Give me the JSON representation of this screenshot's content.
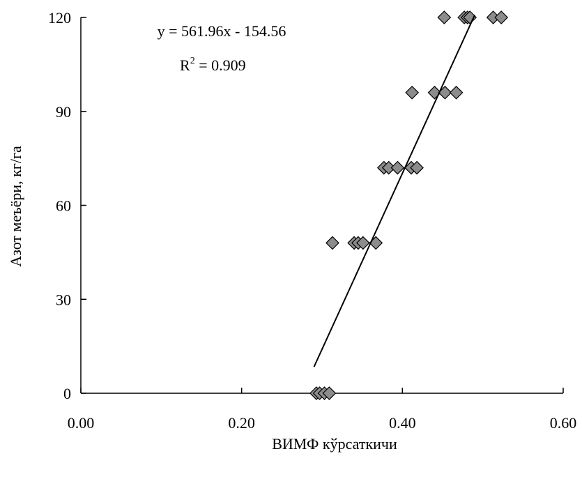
{
  "chart_data": {
    "type": "scatter",
    "xlabel": "ВИМФ кўрсаткичи",
    "ylabel": "Азот меъёри, кг/га",
    "xlim": [
      0.0,
      0.6
    ],
    "ylim": [
      0,
      120
    ],
    "x_ticks": [
      "0.00",
      "0.20",
      "0.40",
      "0.60"
    ],
    "y_ticks": [
      "0",
      "30",
      "60",
      "90",
      "120"
    ],
    "grid": false,
    "legend": "none",
    "marker": "diamond",
    "marker_color": "#8c8c8c",
    "series": [
      {
        "points": [
          {
            "x": 0.293,
            "y": 0
          },
          {
            "x": 0.297,
            "y": 0
          },
          {
            "x": 0.303,
            "y": 0
          },
          {
            "x": 0.309,
            "y": 0
          },
          {
            "x": 0.313,
            "y": 48
          },
          {
            "x": 0.34,
            "y": 48
          },
          {
            "x": 0.345,
            "y": 48
          },
          {
            "x": 0.351,
            "y": 48
          },
          {
            "x": 0.367,
            "y": 48
          },
          {
            "x": 0.377,
            "y": 72
          },
          {
            "x": 0.383,
            "y": 72
          },
          {
            "x": 0.394,
            "y": 72
          },
          {
            "x": 0.411,
            "y": 72
          },
          {
            "x": 0.418,
            "y": 72
          },
          {
            "x": 0.412,
            "y": 96
          },
          {
            "x": 0.44,
            "y": 96
          },
          {
            "x": 0.453,
            "y": 96
          },
          {
            "x": 0.467,
            "y": 96
          },
          {
            "x": 0.452,
            "y": 120
          },
          {
            "x": 0.477,
            "y": 120
          },
          {
            "x": 0.481,
            "y": 120
          },
          {
            "x": 0.484,
            "y": 120
          },
          {
            "x": 0.513,
            "y": 120
          },
          {
            "x": 0.523,
            "y": 120
          }
        ]
      }
    ],
    "trendline": {
      "type": "linear",
      "slope": 561.96,
      "intercept": -154.56,
      "x_range": [
        0.29,
        0.49
      ],
      "equation": "y = 561.96x - 154.56",
      "r2_label": "R",
      "r2_exponent": "2",
      "r2_value": " = 0.909"
    }
  }
}
